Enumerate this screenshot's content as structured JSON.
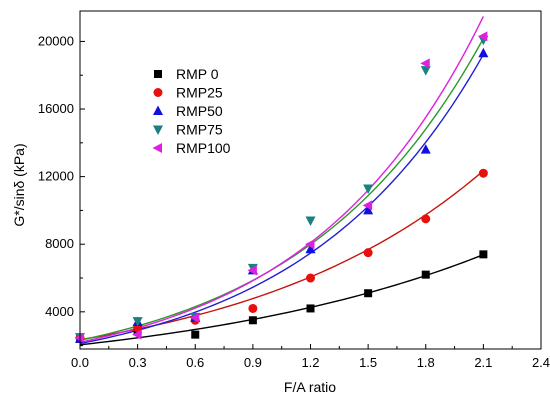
{
  "chart_data": {
    "type": "scatter",
    "xlabel": "F/A ratio",
    "ylabel": "G*/sinδ (kPa)",
    "xlim": [
      0.0,
      2.4
    ],
    "ylim": [
      1800,
      21800
    ],
    "x_ticks": [
      "0.0",
      "0.3",
      "0.6",
      "0.9",
      "1.2",
      "1.5",
      "1.8",
      "2.1",
      "2.4"
    ],
    "y_ticks": [
      "4000",
      "8000",
      "12000",
      "16000",
      "20000"
    ],
    "grid": false,
    "legend_position": "top-left",
    "series": [
      {
        "name": "RMP 0",
        "marker": "square",
        "color": "#000000",
        "fit_color": "#000000",
        "x": [
          0.0,
          0.3,
          0.6,
          0.9,
          1.2,
          1.5,
          1.8,
          2.1
        ],
        "y": [
          2400,
          2900,
          2650,
          3500,
          4200,
          5100,
          6200,
          7400
        ]
      },
      {
        "name": "RMP25",
        "marker": "circle",
        "color": "#e8100c",
        "fit_color": "#c8140c",
        "x": [
          0.0,
          0.3,
          0.6,
          0.9,
          1.2,
          1.5,
          1.8,
          2.1
        ],
        "y": [
          2450,
          3050,
          3500,
          4200,
          6000,
          7500,
          9500,
          12200
        ]
      },
      {
        "name": "RMP50",
        "marker": "triangle-up",
        "color": "#1010e0",
        "fit_color": "#2020d0",
        "x": [
          0.0,
          0.3,
          0.6,
          0.9,
          1.2,
          1.5,
          1.8,
          2.1
        ],
        "y": [
          2400,
          3400,
          3650,
          6450,
          7700,
          10000,
          13600,
          19300
        ]
      },
      {
        "name": "RMP75",
        "marker": "triangle-down",
        "color": "#1a8080",
        "fit_color": "#2a9a2a",
        "x": [
          0.0,
          0.3,
          0.6,
          0.9,
          1.2,
          1.5,
          1.8,
          2.1
        ],
        "y": [
          2500,
          3450,
          3700,
          6600,
          9400,
          11300,
          18300,
          20100
        ]
      },
      {
        "name": "RMP100",
        "marker": "triangle-left",
        "color": "#e020e0",
        "fit_color": "#e020e0",
        "x": [
          0.0,
          0.3,
          0.6,
          0.9,
          1.2,
          1.5,
          1.8,
          2.1
        ],
        "y": [
          2450,
          2650,
          3650,
          6450,
          8000,
          10300,
          18700,
          20300
        ]
      }
    ],
    "fit_curves": [
      {
        "series": "RMP 0",
        "a": 2050,
        "b": 0.61
      },
      {
        "series": "RMP25",
        "a": 2350,
        "b": 0.79
      },
      {
        "series": "RMP50",
        "a": 2120,
        "b": 1.05
      },
      {
        "series": "RMP75",
        "a": 2320,
        "b": 1.03
      },
      {
        "series": "RMP100",
        "a": 2200,
        "b": 1.085
      }
    ]
  }
}
